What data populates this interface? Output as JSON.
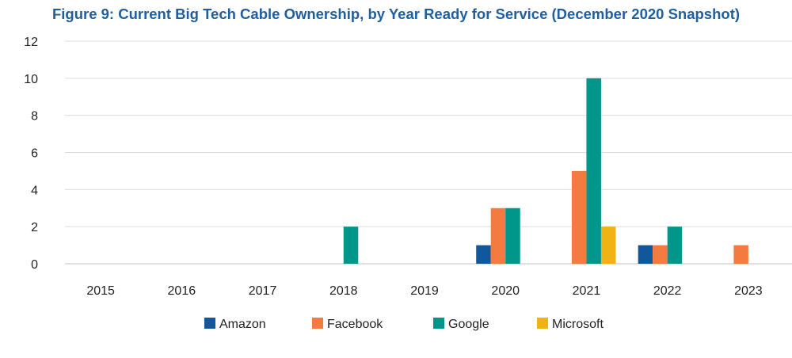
{
  "chart_data": {
    "type": "bar",
    "title": "Figure 9: Current Big Tech Cable Ownership, by Year Ready for Service (December 2020 Snapshot)",
    "xlabel": "",
    "ylabel": "",
    "categories": [
      "2015",
      "2016",
      "2017",
      "2018",
      "2019",
      "2020",
      "2021",
      "2022",
      "2023"
    ],
    "series": [
      {
        "name": "Amazon",
        "color": "#11579b",
        "values": [
          0,
          0,
          0,
          0,
          0,
          1,
          0,
          1,
          0
        ]
      },
      {
        "name": "Facebook",
        "color": "#f47b40",
        "values": [
          0,
          0,
          0,
          0,
          0,
          3,
          5,
          1,
          1
        ]
      },
      {
        "name": "Google",
        "color": "#00968a",
        "values": [
          0,
          0,
          0,
          2,
          0,
          3,
          10,
          2,
          0
        ]
      },
      {
        "name": "Microsoft",
        "color": "#f1b314",
        "values": [
          0,
          0,
          0,
          0,
          0,
          0,
          2,
          0,
          0
        ]
      }
    ],
    "ylim": [
      0,
      12
    ],
    "yticks": [
      "0",
      "2",
      "4",
      "6",
      "8",
      "10",
      "12"
    ],
    "grid": true,
    "legend_position": "bottom"
  }
}
